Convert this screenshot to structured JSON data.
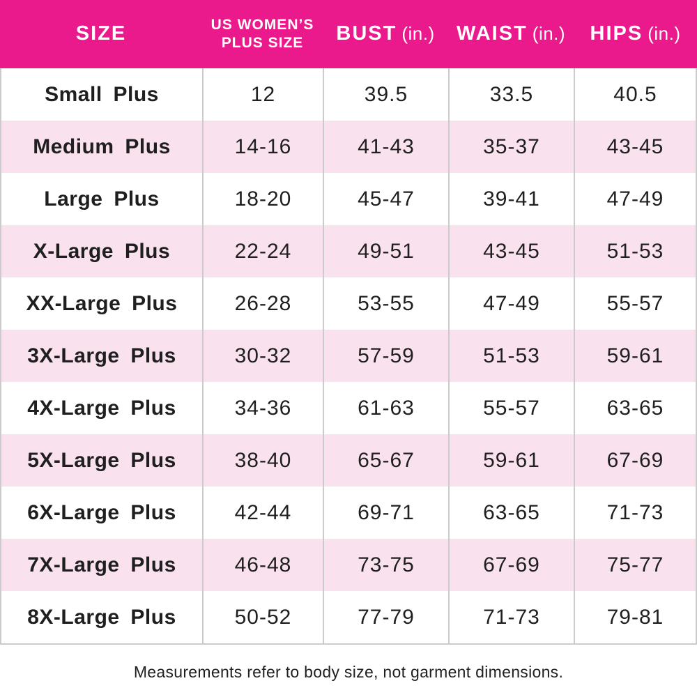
{
  "colors": {
    "header_bg": "#EB1A8C",
    "header_text": "#FFFFFF",
    "row_bg": "#FFFFFF",
    "row_alt_bg": "#F9E2ED",
    "border": "#CBCBCB",
    "body_text": "#1F1F1F"
  },
  "header": {
    "size": "SIZE",
    "us_plus_line1": "US WOMEN’S",
    "us_plus_line2": "PLUS SIZE",
    "bust": "BUST",
    "bust_unit": "(in.)",
    "waist": "WAIST",
    "waist_unit": "(in.)",
    "hips": "HIPS",
    "hips_unit": "(in.)"
  },
  "chart_data": {
    "type": "table",
    "columns": [
      "SIZE",
      "US WOMEN’S PLUS SIZE",
      "BUST (in.)",
      "WAIST (in.)",
      "HIPS (in.)"
    ],
    "rows": [
      [
        "Small Plus",
        "12",
        "39.5",
        "33.5",
        "40.5"
      ],
      [
        "Medium Plus",
        "14-16",
        "41-43",
        "35-37",
        "43-45"
      ],
      [
        "Large Plus",
        "18-20",
        "45-47",
        "39-41",
        "47-49"
      ],
      [
        "X-Large Plus",
        "22-24",
        "49-51",
        "43-45",
        "51-53"
      ],
      [
        "XX-Large Plus",
        "26-28",
        "53-55",
        "47-49",
        "55-57"
      ],
      [
        "3X-Large Plus",
        "30-32",
        "57-59",
        "51-53",
        "59-61"
      ],
      [
        "4X-Large Plus",
        "34-36",
        "61-63",
        "55-57",
        "63-65"
      ],
      [
        "5X-Large Plus",
        "38-40",
        "65-67",
        "59-61",
        "67-69"
      ],
      [
        "6X-Large Plus",
        "42-44",
        "69-71",
        "63-65",
        "71-73"
      ],
      [
        "7X-Large Plus",
        "46-48",
        "73-75",
        "67-69",
        "75-77"
      ],
      [
        "8X-Large Plus",
        "50-52",
        "77-79",
        "71-73",
        "79-81"
      ]
    ],
    "footnote": "Measurements refer to body size, not garment dimensions."
  }
}
